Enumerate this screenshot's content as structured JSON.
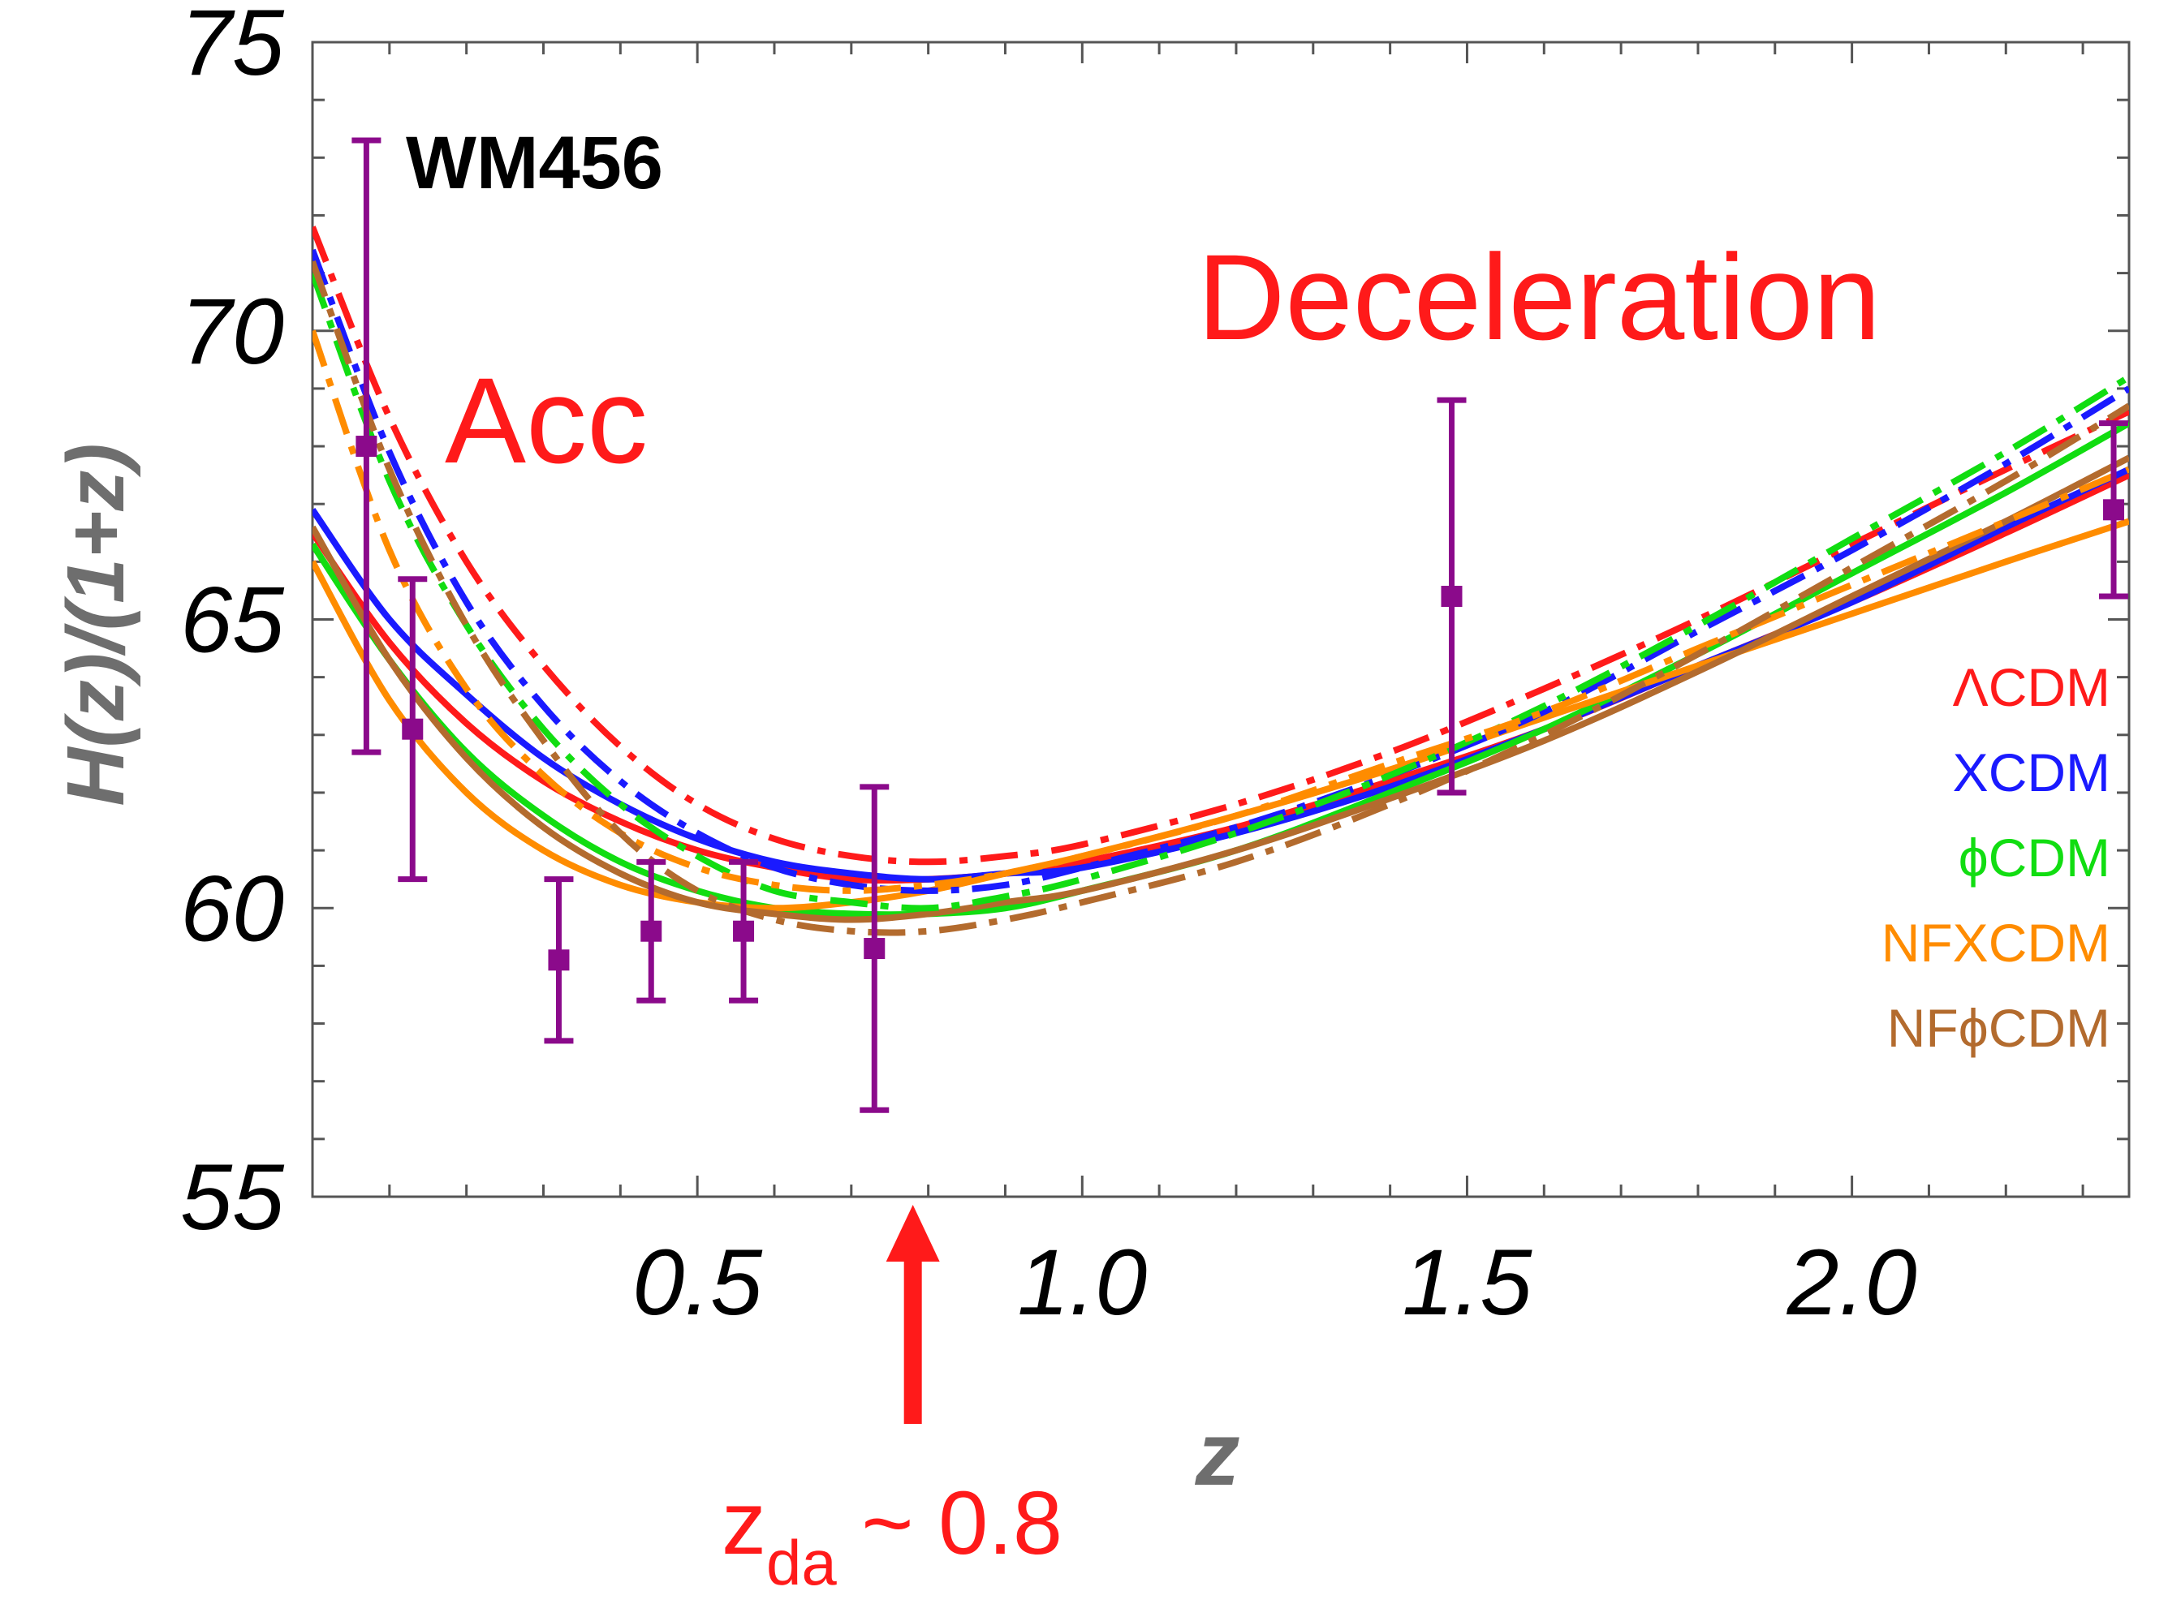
{
  "chart_data": {
    "type": "line",
    "title": "",
    "panel_label": "WM456",
    "xlabel": "z",
    "ylabel": "H(z)/(1+z)",
    "xlim": [
      0.0,
      2.36
    ],
    "ylim": [
      55,
      75
    ],
    "x_ticks": [
      {
        "value": 0.5,
        "label": "0.5"
      },
      {
        "value": 1.0,
        "label": "1.0"
      },
      {
        "value": 1.5,
        "label": "1.5"
      },
      {
        "value": 2.0,
        "label": "2.0"
      }
    ],
    "y_ticks": [
      {
        "value": 55,
        "label": "55"
      },
      {
        "value": 60,
        "label": "60"
      },
      {
        "value": 65,
        "label": "65"
      },
      {
        "value": 70,
        "label": "70"
      },
      {
        "value": 75,
        "label": "75"
      }
    ],
    "annotations": {
      "acc": "Acc",
      "deceleration": "Deceleration",
      "arrow_label_main": "z",
      "arrow_label_sub": "da",
      "arrow_label_value": " ~ 0.8",
      "arrow_x": 0.78
    },
    "legend": [
      {
        "name": "ΛCDM",
        "color": "#ff1a1a"
      },
      {
        "name": "XCDM",
        "color": "#1a1aff"
      },
      {
        "name": "ϕCDM",
        "color": "#11dd11"
      },
      {
        "name": "NFXCDM",
        "color": "#ff8c00"
      },
      {
        "name": "NFϕCDM",
        "color": "#b36b2e"
      }
    ],
    "data_points": {
      "color": "#8b0a8b",
      "points": [
        {
          "x": 0.07,
          "y": 68.0,
          "err": 5.3
        },
        {
          "x": 0.13,
          "y": 63.1,
          "err": 2.6
        },
        {
          "x": 0.32,
          "y": 59.1,
          "err": 1.4
        },
        {
          "x": 0.44,
          "y": 59.6,
          "err": 1.2
        },
        {
          "x": 0.56,
          "y": 59.6,
          "err": 1.2
        },
        {
          "x": 0.73,
          "y": 59.3,
          "err": 2.8
        },
        {
          "x": 1.48,
          "y": 65.4,
          "err": 3.4
        },
        {
          "x": 2.34,
          "y": 66.9,
          "err": 1.5
        }
      ]
    },
    "series": [
      {
        "name": "ΛCDM solid",
        "color": "#ff1a1a",
        "dash": "solid",
        "x": [
          0.0,
          0.1,
          0.2,
          0.3,
          0.4,
          0.5,
          0.6,
          0.7,
          0.8,
          0.9,
          1.0,
          1.2,
          1.4,
          1.6,
          1.8,
          2.0,
          2.2,
          2.36
        ],
        "y": [
          66.5,
          64.6,
          63.2,
          62.2,
          61.5,
          61.0,
          60.7,
          60.5,
          60.5,
          60.6,
          60.8,
          61.4,
          62.2,
          63.1,
          64.2,
          65.3,
          66.5,
          67.5
        ]
      },
      {
        "name": "XCDM solid",
        "color": "#1a1aff",
        "dash": "solid",
        "x": [
          0.0,
          0.1,
          0.2,
          0.3,
          0.4,
          0.5,
          0.6,
          0.7,
          0.8,
          0.9,
          1.0,
          1.2,
          1.4,
          1.6,
          1.8,
          2.0,
          2.2,
          2.36
        ],
        "y": [
          66.9,
          65.0,
          63.7,
          62.6,
          61.8,
          61.2,
          60.8,
          60.6,
          60.5,
          60.6,
          60.7,
          61.3,
          62.1,
          63.1,
          64.2,
          65.3,
          66.6,
          67.6
        ]
      },
      {
        "name": "ϕCDM solid",
        "color": "#11dd11",
        "dash": "solid",
        "x": [
          0.0,
          0.1,
          0.2,
          0.3,
          0.4,
          0.5,
          0.6,
          0.7,
          0.8,
          0.9,
          1.0,
          1.2,
          1.4,
          1.6,
          1.8,
          2.0,
          2.2,
          2.36
        ],
        "y": [
          66.3,
          64.3,
          62.7,
          61.6,
          60.8,
          60.3,
          60.0,
          59.9,
          59.9,
          60.0,
          60.3,
          61.0,
          62.0,
          63.1,
          64.4,
          65.8,
          67.2,
          68.4
        ]
      },
      {
        "name": "NFXCDM solid",
        "color": "#ff8c00",
        "dash": "solid",
        "x": [
          0.0,
          0.1,
          0.2,
          0.3,
          0.4,
          0.5,
          0.6,
          0.7,
          0.8,
          0.9,
          1.0,
          1.2,
          1.4,
          1.6,
          1.8,
          2.0,
          2.2,
          2.36
        ],
        "y": [
          66.0,
          63.6,
          62.0,
          61.0,
          60.4,
          60.1,
          60.0,
          60.1,
          60.3,
          60.6,
          60.9,
          61.6,
          62.4,
          63.3,
          64.2,
          65.1,
          66.0,
          66.7
        ]
      },
      {
        "name": "NFϕCDM solid",
        "color": "#b36b2e",
        "dash": "solid",
        "x": [
          0.0,
          0.1,
          0.2,
          0.3,
          0.4,
          0.5,
          0.6,
          0.7,
          0.8,
          0.9,
          1.0,
          1.2,
          1.4,
          1.6,
          1.8,
          2.0,
          2.2,
          2.36
        ],
        "y": [
          66.6,
          64.3,
          62.6,
          61.4,
          60.6,
          60.1,
          59.9,
          59.8,
          59.9,
          60.1,
          60.3,
          61.0,
          61.9,
          62.9,
          64.1,
          65.4,
          66.7,
          67.8
        ]
      },
      {
        "name": "ΛCDM dotdash",
        "color": "#ff1a1a",
        "dash": "dotdash",
        "x": [
          0.0,
          0.1,
          0.2,
          0.3,
          0.4,
          0.5,
          0.6,
          0.7,
          0.8,
          0.9,
          1.0,
          1.2,
          1.4,
          1.6,
          1.8,
          2.0,
          2.2,
          2.36
        ],
        "y": [
          71.8,
          68.5,
          66.0,
          64.2,
          62.8,
          61.8,
          61.2,
          60.9,
          60.8,
          60.9,
          61.1,
          61.8,
          62.7,
          63.8,
          65.0,
          66.3,
          67.6,
          68.6
        ]
      },
      {
        "name": "XCDM dotdash",
        "color": "#1a1aff",
        "dash": "dotdash",
        "x": [
          0.0,
          0.1,
          0.2,
          0.3,
          0.4,
          0.5,
          0.6,
          0.7,
          0.8,
          0.9,
          1.0,
          1.2,
          1.4,
          1.6,
          1.8,
          2.0,
          2.2,
          2.36
        ],
        "y": [
          71.4,
          67.9,
          65.3,
          63.5,
          62.2,
          61.3,
          60.7,
          60.4,
          60.3,
          60.4,
          60.7,
          61.4,
          62.3,
          63.4,
          64.8,
          66.2,
          67.7,
          69.0
        ]
      },
      {
        "name": "ϕCDM dotdash",
        "color": "#11dd11",
        "dash": "dotdash",
        "x": [
          0.0,
          0.1,
          0.2,
          0.3,
          0.4,
          0.5,
          0.6,
          0.7,
          0.8,
          0.9,
          1.0,
          1.2,
          1.4,
          1.6,
          1.8,
          2.0,
          2.2,
          2.36
        ],
        "y": [
          71.0,
          67.4,
          64.9,
          63.1,
          61.8,
          60.9,
          60.3,
          60.1,
          60.0,
          60.2,
          60.5,
          61.3,
          62.3,
          63.5,
          64.9,
          66.4,
          67.9,
          69.2
        ]
      },
      {
        "name": "NFXCDM dotdash",
        "color": "#ff8c00",
        "dash": "dotdash",
        "x": [
          0.0,
          0.1,
          0.2,
          0.3,
          0.4,
          0.5,
          0.6,
          0.7,
          0.8,
          0.9,
          1.0,
          1.2,
          1.4,
          1.6,
          1.8,
          2.0,
          2.2,
          2.36
        ],
        "y": [
          70.0,
          66.2,
          63.8,
          62.3,
          61.3,
          60.7,
          60.4,
          60.3,
          60.4,
          60.6,
          60.9,
          61.6,
          62.5,
          63.4,
          64.5,
          65.6,
          66.7,
          67.6
        ]
      },
      {
        "name": "NFϕCDM dotdash",
        "color": "#b36b2e",
        "dash": "dotdash",
        "x": [
          0.0,
          0.1,
          0.2,
          0.3,
          0.4,
          0.5,
          0.6,
          0.7,
          0.8,
          0.9,
          1.0,
          1.2,
          1.4,
          1.6,
          1.8,
          2.0,
          2.2,
          2.36
        ],
        "y": [
          71.2,
          67.6,
          64.9,
          62.9,
          61.3,
          60.3,
          59.8,
          59.6,
          59.6,
          59.8,
          60.1,
          60.8,
          61.8,
          63.0,
          64.4,
          65.9,
          67.4,
          68.7
        ]
      }
    ]
  }
}
